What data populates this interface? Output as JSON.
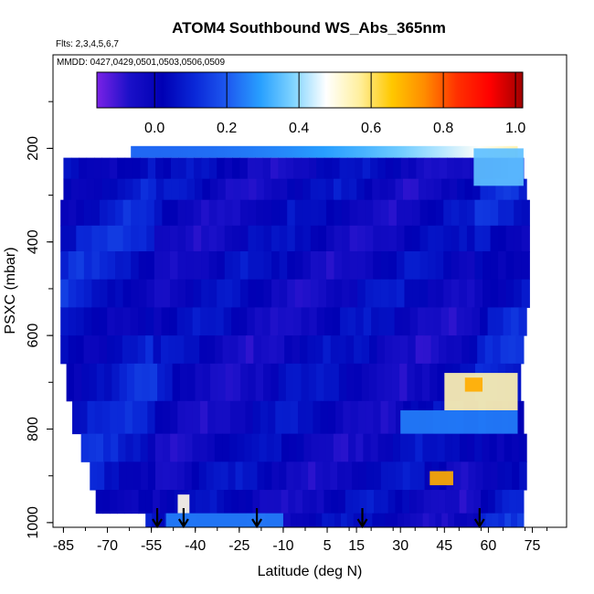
{
  "chart_data": {
    "type": "heatmap",
    "title": "ATOM4 Southbound WS_Abs_365nm",
    "subtitle_flights": "Flts: 2,3,4,5,6,7",
    "subtitle_dates": "MMDD: 0427,0429,0501,0503,0506,0509",
    "xlabel": "Latitude (deg N)",
    "ylabel": "PSXC (mbar)",
    "xlim": [
      -87,
      87
    ],
    "ylim": [
      1010,
      0
    ],
    "x_ticks": [
      -85,
      -70,
      -55,
      -40,
      -25,
      -10,
      5,
      15,
      30,
      45,
      60,
      75
    ],
    "y_ticks": [
      200,
      400,
      600,
      800,
      1000
    ],
    "colorbar": {
      "range": [
        -0.16,
        1.02
      ],
      "ticks": [
        0.0,
        0.2,
        0.4,
        0.6,
        0.8,
        1.0
      ],
      "tick_labels": [
        "0.0",
        "0.2",
        "0.4",
        "0.6",
        "0.8",
        "1.0"
      ],
      "colors": [
        "#7a22e6",
        "#1a10c8",
        "#0000b4",
        "#0a28d8",
        "#1e5af0",
        "#28a0ff",
        "#80d4ff",
        "#ffffff",
        "#fff0a0",
        "#ffc800",
        "#ff8c00",
        "#ff3000",
        "#ff0000",
        "#a00000"
      ]
    },
    "markers": [
      {
        "lat": -53,
        "label": ""
      },
      {
        "lat": -44,
        "label": ""
      },
      {
        "lat": -19,
        "label": ""
      },
      {
        "lat": 17,
        "label": ""
      },
      {
        "lat": 57,
        "label": ""
      }
    ],
    "profiles": [
      {
        "lat_start": -85,
        "lat_end": 72,
        "p_top": 220,
        "p_bot": 265
      },
      {
        "lat_start": -85,
        "lat_end": 73,
        "p_top": 265,
        "p_bot": 310
      },
      {
        "lat_start": -86,
        "lat_end": 74,
        "p_top": 310,
        "p_bot": 365
      },
      {
        "lat_start": -86,
        "lat_end": 74,
        "p_top": 365,
        "p_bot": 420
      },
      {
        "lat_start": -86,
        "lat_end": 74,
        "p_top": 420,
        "p_bot": 480
      },
      {
        "lat_start": -86,
        "lat_end": 74,
        "p_top": 480,
        "p_bot": 540
      },
      {
        "lat_start": -86,
        "lat_end": 73,
        "p_top": 540,
        "p_bot": 600
      },
      {
        "lat_start": -86,
        "lat_end": 72,
        "p_top": 600,
        "p_bot": 660
      },
      {
        "lat_start": -84,
        "lat_end": 71,
        "p_top": 660,
        "p_bot": 740
      },
      {
        "lat_start": -82,
        "lat_end": 72,
        "p_top": 740,
        "p_bot": 810
      },
      {
        "lat_start": -79,
        "lat_end": 73,
        "p_top": 810,
        "p_bot": 870
      },
      {
        "lat_start": -76,
        "lat_end": 73,
        "p_top": 870,
        "p_bot": 930
      },
      {
        "lat_start": -74,
        "lat_end": 72,
        "p_top": 930,
        "p_bot": 980
      },
      {
        "lat_start": -57,
        "lat_end": 72,
        "p_top": 980,
        "p_bot": 1010
      }
    ],
    "top_strip": {
      "lat_start": -62,
      "lat_end": 70,
      "p_top": 195,
      "p_bot": 220,
      "value_start": 0.22,
      "value_end": 0.55
    },
    "features": [
      {
        "lat_start": 45,
        "lat_end": 70,
        "p_top": 680,
        "p_bot": 760,
        "value": 0.55
      },
      {
        "lat_start": 52,
        "lat_end": 58,
        "p_top": 690,
        "p_bot": 720,
        "value": 0.7
      },
      {
        "lat_start": 40,
        "lat_end": 48,
        "p_top": 890,
        "p_bot": 920,
        "value": 0.7
      },
      {
        "lat_start": 30,
        "lat_end": 70,
        "p_top": 760,
        "p_bot": 810,
        "value": 0.25
      },
      {
        "lat_start": -46,
        "lat_end": -42,
        "p_top": 940,
        "p_bot": 980,
        "value": 0.5
      },
      {
        "lat_start": -50,
        "lat_end": -10,
        "p_top": 980,
        "p_bot": 1010,
        "value": 0.25
      },
      {
        "lat_start": 55,
        "lat_end": 72,
        "p_top": 200,
        "p_bot": 280,
        "value": 0.35
      }
    ]
  }
}
